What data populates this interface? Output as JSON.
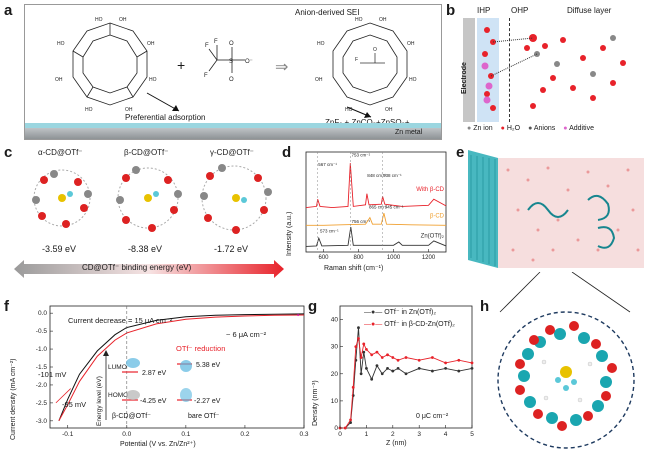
{
  "panels": {
    "a": {
      "label": "a",
      "title": "Anion-derived SEI",
      "preferential": "Preferential adsorption",
      "products": "ZnF₂ + ZnCO₃+ZnSO₃+...",
      "zn_metal": "Zn metal",
      "plus": "+"
    },
    "b": {
      "label": "b",
      "ihp": "IHP",
      "ohp": "OHP",
      "diffuse": "Diffuse layer",
      "electrode": "Electrode",
      "legend": [
        "Zn ion",
        "H₂O",
        "Anions",
        "Additive"
      ]
    },
    "c": {
      "label": "c",
      "names": [
        "α-CD@OTf⁻",
        "β-CD@OTf⁻",
        "γ-CD@OTf⁻"
      ],
      "energies": [
        "-3.59 eV",
        "-8.38 eV",
        "-1.72 eV"
      ],
      "arrow_label": "CD@OTf⁻ binding energy (eV)"
    },
    "d": {
      "label": "d",
      "ylabel": "Intensity (a.u.)",
      "xlabel": "Raman shift (cm⁻¹)",
      "series": [
        "With β-CD",
        "β-CD",
        "Zn(OTf)₂"
      ],
      "peaks": [
        "567 cm⁻¹",
        "753 cm⁻¹",
        "848 cm⁻¹",
        "938 cm⁻¹",
        "865 cm⁻¹",
        "945 cm⁻¹",
        "573 cm⁻¹",
        "756 cm⁻¹"
      ],
      "ticks": [
        "600",
        "800",
        "1000",
        "1200"
      ]
    },
    "e": {
      "label": "e"
    },
    "f": {
      "label": "f",
      "ylabel": "Current density (mA cm⁻²)",
      "xlabel": "Potential (V vs. Zn/Zn²⁺)",
      "current_decrease": "Current decrease = 15 μA cm⁻²",
      "approx": "~ 6 μA cm⁻²",
      "reduction": "OTf⁻ reduction",
      "mv1": "-101 mV",
      "mv2": "-95 mV",
      "energy_level": "Energy level (eV)",
      "lumo": "LUMO",
      "homo": "HOMO",
      "lumo1": "2.87 eV",
      "lumo2": "5.38 eV",
      "homo1": "-4.25 eV",
      "homo2": "-2.27 eV",
      "bcd": "β-CD@OTf⁻",
      "bare": "bare OTf⁻",
      "xticks": [
        "-0.1",
        "0.0",
        "0.1",
        "0.2",
        "0.3"
      ],
      "yticks": [
        "0.0",
        "-0.5",
        "-1.0",
        "-1.5",
        "-2.0",
        "-2.5",
        "-3.0"
      ]
    },
    "g": {
      "label": "g",
      "ylabel": "Density (nm⁻³)",
      "xlabel": "Z (nm)",
      "legend": [
        "OTf⁻ in Zn(OTf)₂",
        "OTf⁻ in β-CD-Zn(OTf)₂"
      ],
      "note": "0 μC cm⁻²",
      "xticks": [
        "0",
        "1",
        "2",
        "3",
        "4",
        "5"
      ],
      "yticks": [
        "0",
        "10",
        "20",
        "30",
        "40"
      ]
    },
    "h": {
      "label": "h"
    }
  },
  "colors": {
    "red": "#e8222a",
    "orange": "#f0a030",
    "dark": "#333333",
    "zn": "#a8a8a8",
    "cyan": "#1aa6b0",
    "blue_band": "#cfe3f5"
  },
  "chart_data": [
    {
      "type": "line",
      "title": "",
      "xlabel": "Raman shift (cm⁻¹)",
      "ylabel": "Intensity (a.u.)",
      "xlim": [
        500,
        1300
      ],
      "series": [
        {
          "name": "With β-CD",
          "x": [
            500,
            560,
            567,
            580,
            650,
            740,
            753,
            770,
            840,
            848,
            860,
            930,
            938,
            950,
            1050,
            1200,
            1230,
            1300
          ],
          "y": [
            0.8,
            0.82,
            0.95,
            0.82,
            0.8,
            0.82,
            1.6,
            0.82,
            0.85,
            1.05,
            0.85,
            0.86,
            1.0,
            0.86,
            0.82,
            0.84,
            0.95,
            0.83
          ]
        },
        {
          "name": "β-CD",
          "x": [
            500,
            600,
            700,
            840,
            865,
            880,
            930,
            945,
            960,
            1100,
            1300
          ],
          "y": [
            0.48,
            0.48,
            0.49,
            0.5,
            0.62,
            0.5,
            0.5,
            0.7,
            0.5,
            0.49,
            0.48
          ]
        },
        {
          "name": "Zn(OTf)₂",
          "x": [
            500,
            560,
            573,
            590,
            740,
            756,
            770,
            1000,
            1030,
            1050,
            1200,
            1230,
            1300
          ],
          "y": [
            0.1,
            0.11,
            0.25,
            0.11,
            0.12,
            0.45,
            0.12,
            0.12,
            0.18,
            0.12,
            0.12,
            0.2,
            0.11
          ]
        }
      ]
    },
    {
      "type": "line",
      "title": "",
      "xlabel": "Potential (V vs. Zn/Zn²⁺)",
      "ylabel": "Current density (mA cm⁻²)",
      "xlim": [
        -0.13,
        0.3
      ],
      "ylim": [
        -3.2,
        0.2
      ],
      "series": [
        {
          "name": "",
          "x": [
            -0.115,
            -0.1,
            -0.08,
            -0.05,
            -0.02,
            0.0,
            0.05,
            0.1,
            0.15,
            0.2,
            0.25,
            0.3
          ],
          "y": [
            -3.0,
            -2.4,
            -1.7,
            -1.05,
            -0.6,
            -0.4,
            -0.2,
            -0.1,
            -0.06,
            -0.04,
            -0.03,
            -0.02
          ]
        },
        {
          "name": "",
          "x": [
            -0.115,
            -0.1,
            -0.08,
            -0.05,
            -0.02,
            0.0,
            0.05,
            0.1,
            0.15,
            0.2,
            0.25,
            0.3
          ],
          "y": [
            -3.0,
            -2.55,
            -1.9,
            -1.2,
            -0.75,
            -0.55,
            -0.3,
            -0.17,
            -0.11,
            -0.08,
            -0.06,
            -0.05
          ]
        }
      ]
    },
    {
      "type": "line",
      "title": "",
      "xlabel": "Z (nm)",
      "ylabel": "Density (nm⁻³)",
      "xlim": [
        0,
        5
      ],
      "ylim": [
        0,
        45
      ],
      "series": [
        {
          "name": "OTf⁻ in Zn(OTf)₂",
          "x": [
            0,
            0.2,
            0.4,
            0.5,
            0.6,
            0.7,
            0.8,
            0.9,
            1.0,
            1.2,
            1.4,
            1.6,
            1.8,
            2.0,
            2.2,
            2.5,
            3.0,
            3.5,
            4.0,
            4.5,
            5.0
          ],
          "y": [
            0,
            0,
            2,
            12,
            25,
            37,
            20,
            28,
            22,
            18,
            23,
            20,
            22,
            21,
            22,
            20,
            22,
            21,
            22,
            21,
            22
          ]
        },
        {
          "name": "OTf⁻ in β-CD-Zn(OTf)₂",
          "x": [
            0,
            0.2,
            0.4,
            0.5,
            0.6,
            0.7,
            0.8,
            0.9,
            1.0,
            1.2,
            1.4,
            1.6,
            1.8,
            2.0,
            2.2,
            2.5,
            3.0,
            3.5,
            4.0,
            4.5,
            5.0
          ],
          "y": [
            0,
            0,
            3,
            15,
            30,
            33,
            26,
            31,
            29,
            27,
            28,
            26,
            27,
            26,
            25,
            26,
            25,
            26,
            24,
            25,
            24
          ]
        }
      ]
    }
  ]
}
